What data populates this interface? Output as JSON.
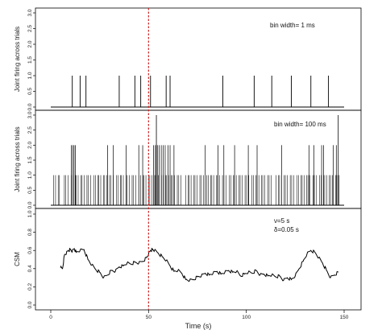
{
  "colors": {
    "axis": "#000000",
    "data": "#000000",
    "marker": "#cc2222"
  },
  "chart_data": {
    "type": "line",
    "xlabel": "Time (s)",
    "xlim": [
      0,
      150
    ],
    "xticks": [
      0,
      50,
      100,
      150
    ],
    "marker_x": 50,
    "panels": [
      {
        "type": "bar",
        "ylabel": "Joint firing across trials",
        "annotation": [
          "bin width= 1 ms"
        ],
        "ylim": [
          0,
          3
        ],
        "yticks": [
          "0.0",
          "0.5",
          "1.0",
          "1.5",
          "2.0",
          "2.5",
          "3.0"
        ],
        "baseline_x": [
          0,
          150
        ],
        "spikes": [
          {
            "x": 11,
            "y": 1
          },
          {
            "x": 15,
            "y": 1
          },
          {
            "x": 18,
            "y": 1
          },
          {
            "x": 35,
            "y": 1
          },
          {
            "x": 43,
            "y": 1
          },
          {
            "x": 46,
            "y": 1
          },
          {
            "x": 51,
            "y": 1
          },
          {
            "x": 59,
            "y": 1
          },
          {
            "x": 61,
            "y": 1
          },
          {
            "x": 88,
            "y": 1
          },
          {
            "x": 104,
            "y": 1
          },
          {
            "x": 113,
            "y": 1
          },
          {
            "x": 123,
            "y": 1
          },
          {
            "x": 133,
            "y": 1
          },
          {
            "x": 142,
            "y": 1
          }
        ]
      },
      {
        "type": "bar",
        "ylabel": "Joint firing across trials",
        "annotation": [
          "bin width= 100 ms"
        ],
        "ylim": [
          0,
          3
        ],
        "yticks": [
          "0.0",
          "0.5",
          "1.0",
          "1.5",
          "2.0",
          "2.5",
          "3.0"
        ],
        "baseline_x": [
          0,
          150
        ],
        "spikes_two": [
          10.5,
          11.2,
          11.9,
          12.6,
          29,
          32,
          38.5,
          45,
          47,
          52.5,
          53.5,
          54.5,
          55.5,
          56.5,
          57.5,
          58.5,
          60,
          61,
          63,
          79,
          85.5,
          88.5,
          94,
          101,
          105.5,
          118,
          132,
          134.5,
          138.5,
          139.5,
          144.5,
          146
        ],
        "spikes_three": [
          54,
          147
        ]
      },
      {
        "type": "line",
        "ylabel": "CSM",
        "annotation": [
          "ν=5 s",
          "δ=0.05 s"
        ],
        "ylim": [
          0,
          1
        ],
        "yticks": [
          "0.0",
          "0.2",
          "0.4",
          "0.6",
          "0.8",
          "1.0"
        ],
        "x": [
          5,
          6,
          7,
          8,
          9,
          10,
          11,
          12,
          13,
          15,
          17,
          19,
          21,
          23,
          25,
          27,
          29,
          31,
          33,
          35,
          37,
          39,
          41,
          43,
          45,
          47,
          49,
          50,
          51,
          52,
          53,
          55,
          57,
          59,
          61,
          63,
          65,
          67,
          69,
          71,
          73,
          75,
          77,
          79,
          81,
          83,
          85,
          87,
          89,
          91,
          93,
          95,
          97,
          99,
          101,
          103,
          105,
          107,
          109,
          111,
          113,
          115,
          117,
          119,
          121,
          123,
          125,
          127,
          129,
          131,
          133,
          135,
          137,
          139,
          141,
          143,
          145,
          147
        ],
        "y": [
          0.41,
          0.4,
          0.55,
          0.57,
          0.6,
          0.61,
          0.59,
          0.62,
          0.58,
          0.6,
          0.61,
          0.5,
          0.44,
          0.39,
          0.36,
          0.3,
          0.33,
          0.38,
          0.37,
          0.42,
          0.43,
          0.46,
          0.45,
          0.47,
          0.46,
          0.48,
          0.52,
          0.56,
          0.6,
          0.61,
          0.6,
          0.57,
          0.53,
          0.49,
          0.43,
          0.37,
          0.38,
          0.35,
          0.28,
          0.27,
          0.28,
          0.31,
          0.32,
          0.35,
          0.33,
          0.35,
          0.37,
          0.34,
          0.36,
          0.38,
          0.36,
          0.37,
          0.32,
          0.34,
          0.36,
          0.35,
          0.38,
          0.33,
          0.34,
          0.32,
          0.33,
          0.31,
          0.32,
          0.27,
          0.3,
          0.28,
          0.32,
          0.4,
          0.48,
          0.56,
          0.6,
          0.58,
          0.52,
          0.46,
          0.38,
          0.3,
          0.33,
          0.36
        ]
      }
    ]
  }
}
